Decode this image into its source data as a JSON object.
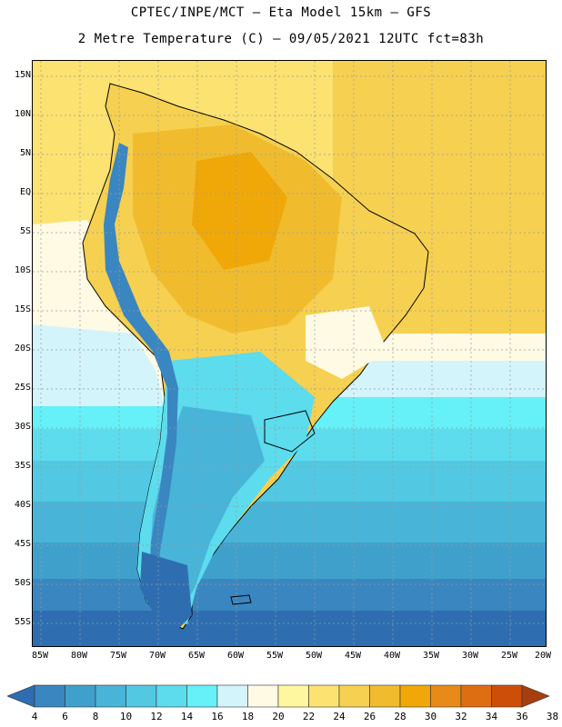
{
  "header": {
    "title_line1": "CPTEC/INPE/MCT –  Eta Model 15km – GFS",
    "title_line2": "2 Metre Temperature (C) – 09/05/2021 12UTC fct=83h"
  },
  "map": {
    "lat_labels": [
      "15N",
      "10N",
      "5N",
      "EQ",
      "5S",
      "10S",
      "15S",
      "20S",
      "25S",
      "30S",
      "35S",
      "40S",
      "45S",
      "50S",
      "55S"
    ],
    "lon_labels": [
      "85W",
      "80W",
      "75W",
      "70W",
      "65W",
      "60W",
      "55W",
      "50W",
      "45W",
      "40W",
      "35W",
      "30W",
      "25W",
      "20W"
    ]
  },
  "colorbar": {
    "labels": [
      "4",
      "6",
      "8",
      "10",
      "12",
      "14",
      "16",
      "18",
      "20",
      "22",
      "24",
      "26",
      "28",
      "30",
      "32",
      "34",
      "36",
      "38"
    ],
    "colors": [
      "#2e6eb0",
      "#3a86c0",
      "#40a0cc",
      "#48b4d8",
      "#52c8e2",
      "#5cdcec",
      "#66f0f8",
      "#d4f4fc",
      "#fffae4",
      "#fff7a0",
      "#fce270",
      "#f6d050",
      "#f0bc2e",
      "#f0a808",
      "#e88a18",
      "#de6e12",
      "#cc4e08",
      "#a83e0e"
    ]
  },
  "colors": {
    "ocean_cold": "#2e6eb0",
    "ocean_cool": "#48b4d8",
    "ocean_mild": "#66f0f8",
    "ocean_warm": "#fce270",
    "land_warm": "#f6d050",
    "land_hot": "#f0a808",
    "andes_cold": "#3a86c0",
    "border": "#000000"
  }
}
